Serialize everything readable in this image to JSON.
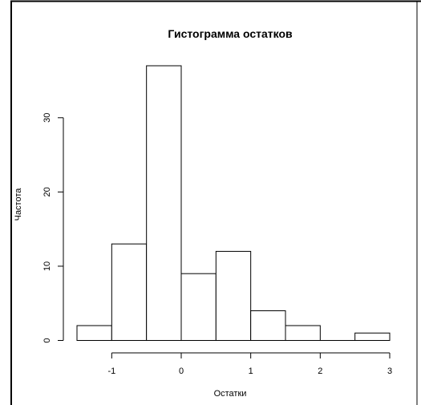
{
  "chart_data": {
    "type": "bar",
    "title": "Гистограмма остатков",
    "xlabel": "Остатки",
    "ylabel": "Частота",
    "bins": [
      {
        "from": -1.5,
        "to": -1.0,
        "count": 2
      },
      {
        "from": -1.0,
        "to": -0.5,
        "count": 13
      },
      {
        "from": -0.5,
        "to": 0.0,
        "count": 37
      },
      {
        "from": 0.0,
        "to": 0.5,
        "count": 9
      },
      {
        "from": 0.5,
        "to": 1.0,
        "count": 12
      },
      {
        "from": 1.0,
        "to": 1.5,
        "count": 4
      },
      {
        "from": 1.5,
        "to": 2.0,
        "count": 2
      },
      {
        "from": 2.0,
        "to": 2.5,
        "count": 0
      },
      {
        "from": 2.5,
        "to": 3.0,
        "count": 1
      }
    ],
    "x_ticks": [
      "-1",
      "0",
      "1",
      "2",
      "3"
    ],
    "y_ticks": [
      "0",
      "10",
      "20",
      "30"
    ],
    "xlim": [
      -1.5,
      3.0
    ],
    "ylim": [
      0,
      37
    ],
    "grid": false,
    "colors": {
      "bar_fill": "#ffffff",
      "bar_stroke": "#000000",
      "text": "#000000"
    }
  }
}
